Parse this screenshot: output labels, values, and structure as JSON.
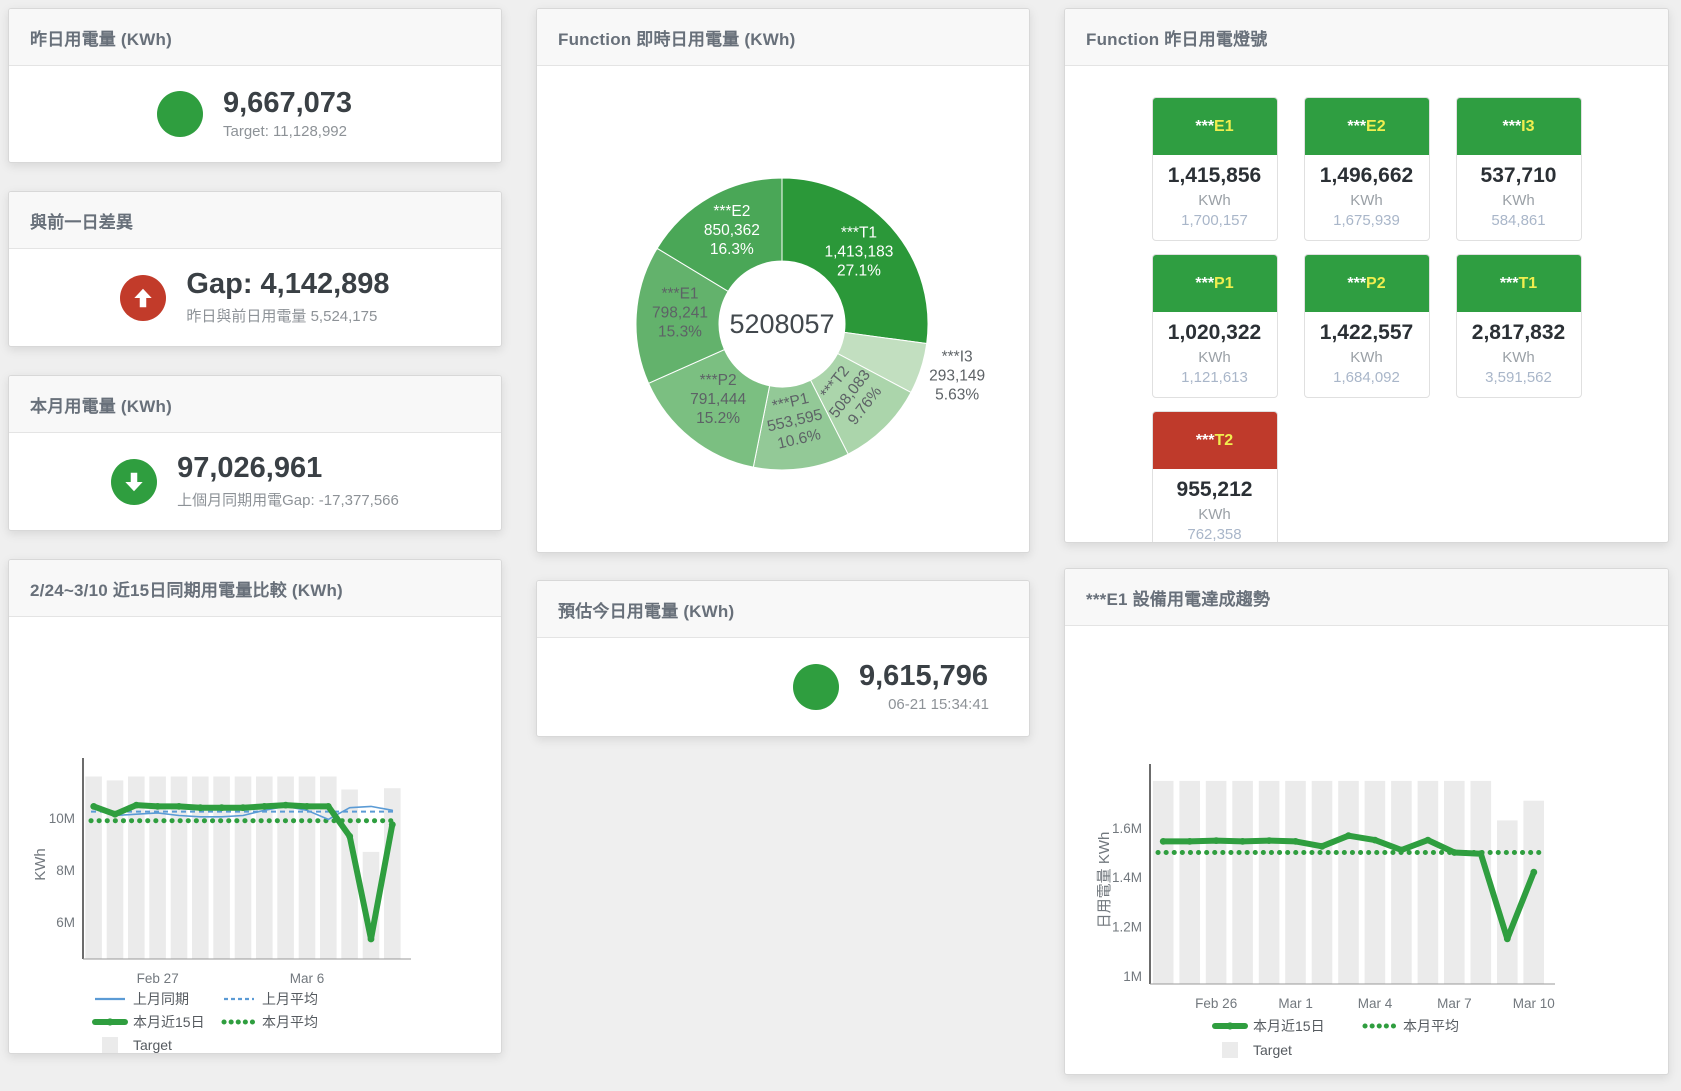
{
  "colors": {
    "green": "#2f9e3f",
    "red": "#c23b2a",
    "blue": "#5b9bd5",
    "bar_gray": "#ebebeb",
    "tile_green": "#2f9e41",
    "tile_red": "#bf3a2b",
    "code_yellow": "#f0ee4f"
  },
  "panels": {
    "yesterday": {
      "title": "昨日用電量 (KWh)",
      "value": "9,667,073",
      "subtitle": "Target: 11,128,992"
    },
    "prev_day_gap": {
      "title": "與前一日差異",
      "value": "Gap: 4,142,898",
      "subtitle": "昨日與前日用電量 5,524,175"
    },
    "month": {
      "title": "本月用電量 (KWh)",
      "value": "97,026,961",
      "subtitle": "上個月同期用電Gap: -17,377,566"
    },
    "estimate": {
      "title": "預估今日用電量 (KWh)",
      "value": "9,615,796",
      "subtitle": "06-21 15:34:41"
    },
    "lights": {
      "title": "Function 昨日用電燈號"
    }
  },
  "tiles": [
    {
      "mask": "***",
      "code": "E1",
      "value": "1,415,856",
      "unit": "KWh",
      "target": "1,700,157",
      "header_color": "#2f9e41"
    },
    {
      "mask": "***",
      "code": "E2",
      "value": "1,496,662",
      "unit": "KWh",
      "target": "1,675,939",
      "header_color": "#2f9e41"
    },
    {
      "mask": "***",
      "code": "I3",
      "value": "537,710",
      "unit": "KWh",
      "target": "584,861",
      "header_color": "#2f9e41"
    },
    {
      "mask": "***",
      "code": "P1",
      "value": "1,020,322",
      "unit": "KWh",
      "target": "1,121,613",
      "header_color": "#2f9e41"
    },
    {
      "mask": "***",
      "code": "P2",
      "value": "1,422,557",
      "unit": "KWh",
      "target": "1,684,092",
      "header_color": "#2f9e41"
    },
    {
      "mask": "***",
      "code": "T1",
      "value": "2,817,832",
      "unit": "KWh",
      "target": "3,591,562",
      "header_color": "#2f9e41"
    },
    {
      "mask": "***",
      "code": "T2",
      "value": "955,212",
      "unit": "KWh",
      "target": "762,358",
      "header_color": "#bf3a2b"
    }
  ],
  "chart_data": [
    {
      "id": "donut",
      "type": "pie",
      "title": "Function 即時日用電量 (KWh)",
      "center_total": "5208057",
      "slices": [
        {
          "name": "***T1",
          "value": 1413183,
          "display": "1,413,183",
          "pct": "27.1%",
          "color": "#2b9839",
          "label_color": "#ffffff"
        },
        {
          "name": "***I3",
          "value": 293149,
          "display": "293,149",
          "pct": "5.63%",
          "color": "#c2dfc0",
          "label_color": "#5d6266"
        },
        {
          "name": "***T2",
          "value": 508083,
          "display": "508,083",
          "pct": "9.76%",
          "color": "#abd5ab",
          "label_color": "#5d6266"
        },
        {
          "name": "***P1",
          "value": 553595,
          "display": "553,595",
          "pct": "10.6%",
          "color": "#93c997",
          "label_color": "#5d6266"
        },
        {
          "name": "***P2",
          "value": 791444,
          "display": "791,444",
          "pct": "15.2%",
          "color": "#7bbf81",
          "label_color": "#5d6266"
        },
        {
          "name": "***E1",
          "value": 798241,
          "display": "798,241",
          "pct": "15.3%",
          "color": "#63b26c",
          "label_color": "#5d6266"
        },
        {
          "name": "***E2",
          "value": 850362,
          "display": "850,362",
          "pct": "16.3%",
          "color": "#4aa757",
          "label_color": "#ffffff"
        }
      ]
    },
    {
      "id": "compare",
      "type": "line",
      "title": "2/24~3/10 近15日同期用電量比較 (KWh)",
      "ylabel": "KWh",
      "unit_suffix": "M",
      "ylim": [
        4.58,
        11.85
      ],
      "yticks": [
        {
          "v": 6,
          "label": "6M"
        },
        {
          "v": 8,
          "label": "8M"
        },
        {
          "v": 10,
          "label": "10M"
        }
      ],
      "xticks": [
        {
          "i": 3,
          "label": "Feb 27"
        },
        {
          "i": 10,
          "label": "Mar 6"
        }
      ],
      "target": {
        "label": "Target",
        "color": "#ebebeb",
        "values": [
          11.6,
          11.45,
          11.6,
          11.6,
          11.6,
          11.6,
          11.6,
          11.6,
          11.6,
          11.6,
          11.6,
          11.6,
          11.1,
          8.7,
          11.15
        ]
      },
      "series": [
        {
          "name": "上月同期",
          "style": "line",
          "color": "#5b9bd5",
          "values": [
            10.45,
            10.1,
            10.15,
            10.2,
            10.1,
            10.05,
            10.05,
            10.1,
            10.3,
            10.45,
            10.3,
            9.95,
            10.4,
            10.45,
            10.3
          ]
        },
        {
          "name": "上月平均",
          "style": "dash",
          "color": "#5b9bd5",
          "avg": 10.25
        },
        {
          "name": "本月近15日",
          "style": "thick",
          "color": "#2f9e3f",
          "values": [
            10.45,
            10.15,
            10.5,
            10.45,
            10.45,
            10.4,
            10.4,
            10.4,
            10.45,
            10.5,
            10.45,
            10.45,
            9.3,
            5.35,
            9.75
          ]
        },
        {
          "name": "本月平均",
          "style": "dot",
          "color": "#2f9e3f",
          "avg": 9.9
        }
      ]
    },
    {
      "id": "trend",
      "type": "line",
      "title": "***E1 設備用電達成趨勢",
      "ylabel": "日用電量 KWh",
      "unit_suffix": "M",
      "ylim": [
        0.967,
        1.81
      ],
      "yticks": [
        {
          "v": 1,
          "label": "1M"
        },
        {
          "v": 1.2,
          "label": "1.2M"
        },
        {
          "v": 1.4,
          "label": "1.4M"
        },
        {
          "v": 1.6,
          "label": "1.6M"
        }
      ],
      "xticks": [
        {
          "i": 2,
          "label": "Feb 26"
        },
        {
          "i": 5,
          "label": "Mar 1"
        },
        {
          "i": 8,
          "label": "Mar 4"
        },
        {
          "i": 11,
          "label": "Mar 7"
        },
        {
          "i": 14,
          "label": "Mar 10"
        }
      ],
      "target": {
        "label": "Target",
        "color": "#ebebeb",
        "values": [
          1.79,
          1.79,
          1.79,
          1.79,
          1.79,
          1.79,
          1.79,
          1.79,
          1.79,
          1.79,
          1.79,
          1.79,
          1.79,
          1.63,
          1.71
        ]
      },
      "series": [
        {
          "name": "本月近15日",
          "style": "thick",
          "color": "#2f9e3f",
          "values": [
            1.545,
            1.545,
            1.548,
            1.545,
            1.548,
            1.545,
            1.525,
            1.568,
            1.55,
            1.51,
            1.55,
            1.5,
            1.495,
            1.15,
            1.42
          ]
        },
        {
          "name": "本月平均",
          "style": "dot",
          "color": "#2f9e3f",
          "avg": 1.5
        }
      ]
    }
  ]
}
